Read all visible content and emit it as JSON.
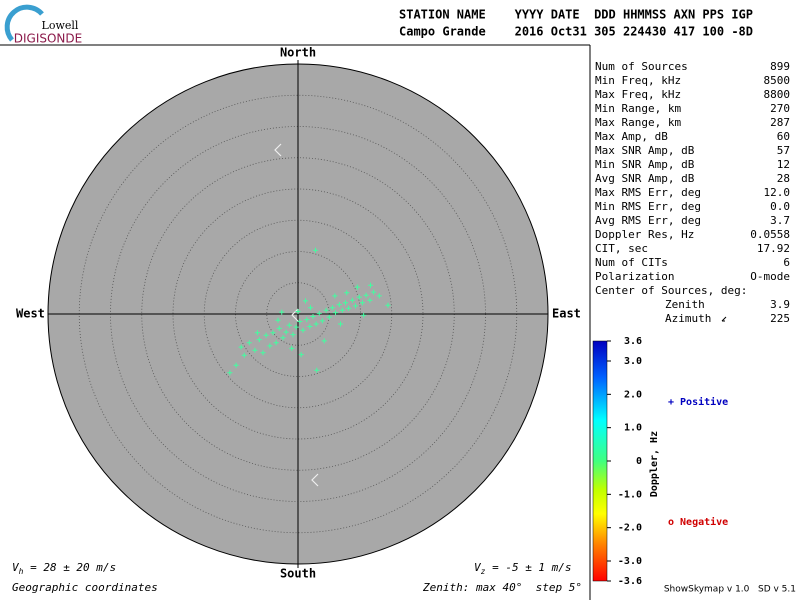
{
  "logo": {
    "top": "Lowell",
    "bottom": "DIGISONDE"
  },
  "header": {
    "labels": "STATION NAME    YYYY DATE  DDD HHMMSS AXN PPS IGP",
    "values": "Campo Grande    2016 Oct31 305 224430 417 100 -8D"
  },
  "directions": {
    "north": "North",
    "south": "South",
    "east": "East",
    "west": "West"
  },
  "skymap": {
    "max_zenith": 40,
    "step": 5,
    "color": "#40ffa0",
    "sources": [
      [
        -10.9,
        -9.4
      ],
      [
        -9.9,
        -8.2
      ],
      [
        -8.6,
        -6.6
      ],
      [
        -9.1,
        -5.3
      ],
      [
        -7.8,
        -4.6
      ],
      [
        -6.9,
        -5.8
      ],
      [
        -6.2,
        -4.1
      ],
      [
        -5.6,
        -6.2
      ],
      [
        -5.1,
        -3.4
      ],
      [
        -4.5,
        -5.1
      ],
      [
        -4.0,
        -3.0
      ],
      [
        -3.5,
        -4.6
      ],
      [
        -3.0,
        -2.3
      ],
      [
        -2.4,
        -3.8
      ],
      [
        -1.9,
        -2.9
      ],
      [
        -1.4,
        -1.8
      ],
      [
        -0.8,
        -3.3
      ],
      [
        -0.3,
        -2.1
      ],
      [
        0.3,
        -1.2
      ],
      [
        0.8,
        -2.6
      ],
      [
        1.4,
        -0.9
      ],
      [
        1.9,
        -2.0
      ],
      [
        2.4,
        -0.4
      ],
      [
        2.9,
        -1.6
      ],
      [
        3.4,
        0.1
      ],
      [
        3.9,
        -1.1
      ],
      [
        4.5,
        0.6
      ],
      [
        5.0,
        -0.5
      ],
      [
        5.5,
        1.0
      ],
      [
        6.0,
        0.2
      ],
      [
        6.6,
        1.5
      ],
      [
        7.1,
        0.6
      ],
      [
        7.6,
        1.8
      ],
      [
        8.1,
        0.9
      ],
      [
        8.7,
        2.2
      ],
      [
        9.2,
        1.3
      ],
      [
        9.8,
        2.7
      ],
      [
        10.3,
        1.8
      ],
      [
        10.9,
        3.0
      ],
      [
        11.5,
        2.2
      ],
      [
        12.1,
        3.5
      ],
      [
        13.0,
        2.9
      ],
      [
        14.4,
        1.4
      ],
      [
        2.8,
        10.2
      ],
      [
        -1.0,
        -5.5
      ],
      [
        0.5,
        -6.5
      ],
      [
        3.0,
        -9.0
      ],
      [
        4.2,
        -4.3
      ],
      [
        -2.6,
        0.3
      ],
      [
        1.2,
        2.1
      ],
      [
        5.9,
        2.9
      ],
      [
        9.5,
        4.3
      ],
      [
        11.6,
        4.6
      ],
      [
        6.8,
        -1.6
      ],
      [
        -6.5,
        -3.0
      ],
      [
        -3.2,
        -1.0
      ],
      [
        0.0,
        0.4
      ],
      [
        2.0,
        1.0
      ],
      [
        7.8,
        3.4
      ],
      [
        10.5,
        -0.2
      ]
    ]
  },
  "stats": [
    [
      "Num of Sources",
      "899"
    ],
    [
      "Min Freq, kHz",
      "8500"
    ],
    [
      "Max Freq, kHz",
      "8800"
    ],
    [
      "Min Range, km",
      "270"
    ],
    [
      "Max Range, km",
      "287"
    ],
    [
      "Max Amp, dB",
      "60"
    ],
    [
      "Max SNR Amp, dB",
      "57"
    ],
    [
      "Min SNR Amp, dB",
      "12"
    ],
    [
      "Avg SNR Amp, dB",
      "28"
    ],
    [
      "Max RMS Err, deg",
      "12.0"
    ],
    [
      "Min RMS Err, deg",
      "0.0"
    ],
    [
      "Avg RMS Err, deg",
      "3.7"
    ],
    [
      "Doppler Res, Hz",
      "0.0558"
    ],
    [
      "CIT, sec",
      "17.92"
    ],
    [
      "Num of CITs",
      "6"
    ],
    [
      "Polarization",
      "O-mode"
    ]
  ],
  "center": {
    "title": "Center of Sources, deg:",
    "zenith_label": "Zenith",
    "zenith": "3.9",
    "azimuth_label": "Azimuth",
    "azimuth": "225"
  },
  "colorbar": {
    "title": "Doppler, Hz",
    "lim": [
      -3.6,
      3.6
    ],
    "ticks": [
      3.6,
      {
        "value": 3,
        "label": "3.0"
      },
      {
        "value": 2,
        "label": "2.0"
      },
      {
        "value": 1,
        "label": "1.0"
      },
      0,
      {
        "value": -1,
        "label": "-1.0"
      },
      {
        "value": -2,
        "label": "-2.0"
      },
      {
        "value": -3,
        "label": "-3.0"
      },
      -3.6
    ]
  },
  "legend": {
    "positive": "+ Positive",
    "negative": "o Negative"
  },
  "footer": {
    "vh": {
      "symbol": "V",
      "sub": "h",
      "text": " = 28 ± 20 m/s"
    },
    "vz": {
      "symbol": "V",
      "sub": "z",
      "text": " = -5 ± 1 m/s"
    },
    "coords": "Geographic coordinates",
    "zenith": "Zenith: max 40°  step 5°",
    "version": "ShowSkymap v 1.0   SD v 5.1"
  }
}
